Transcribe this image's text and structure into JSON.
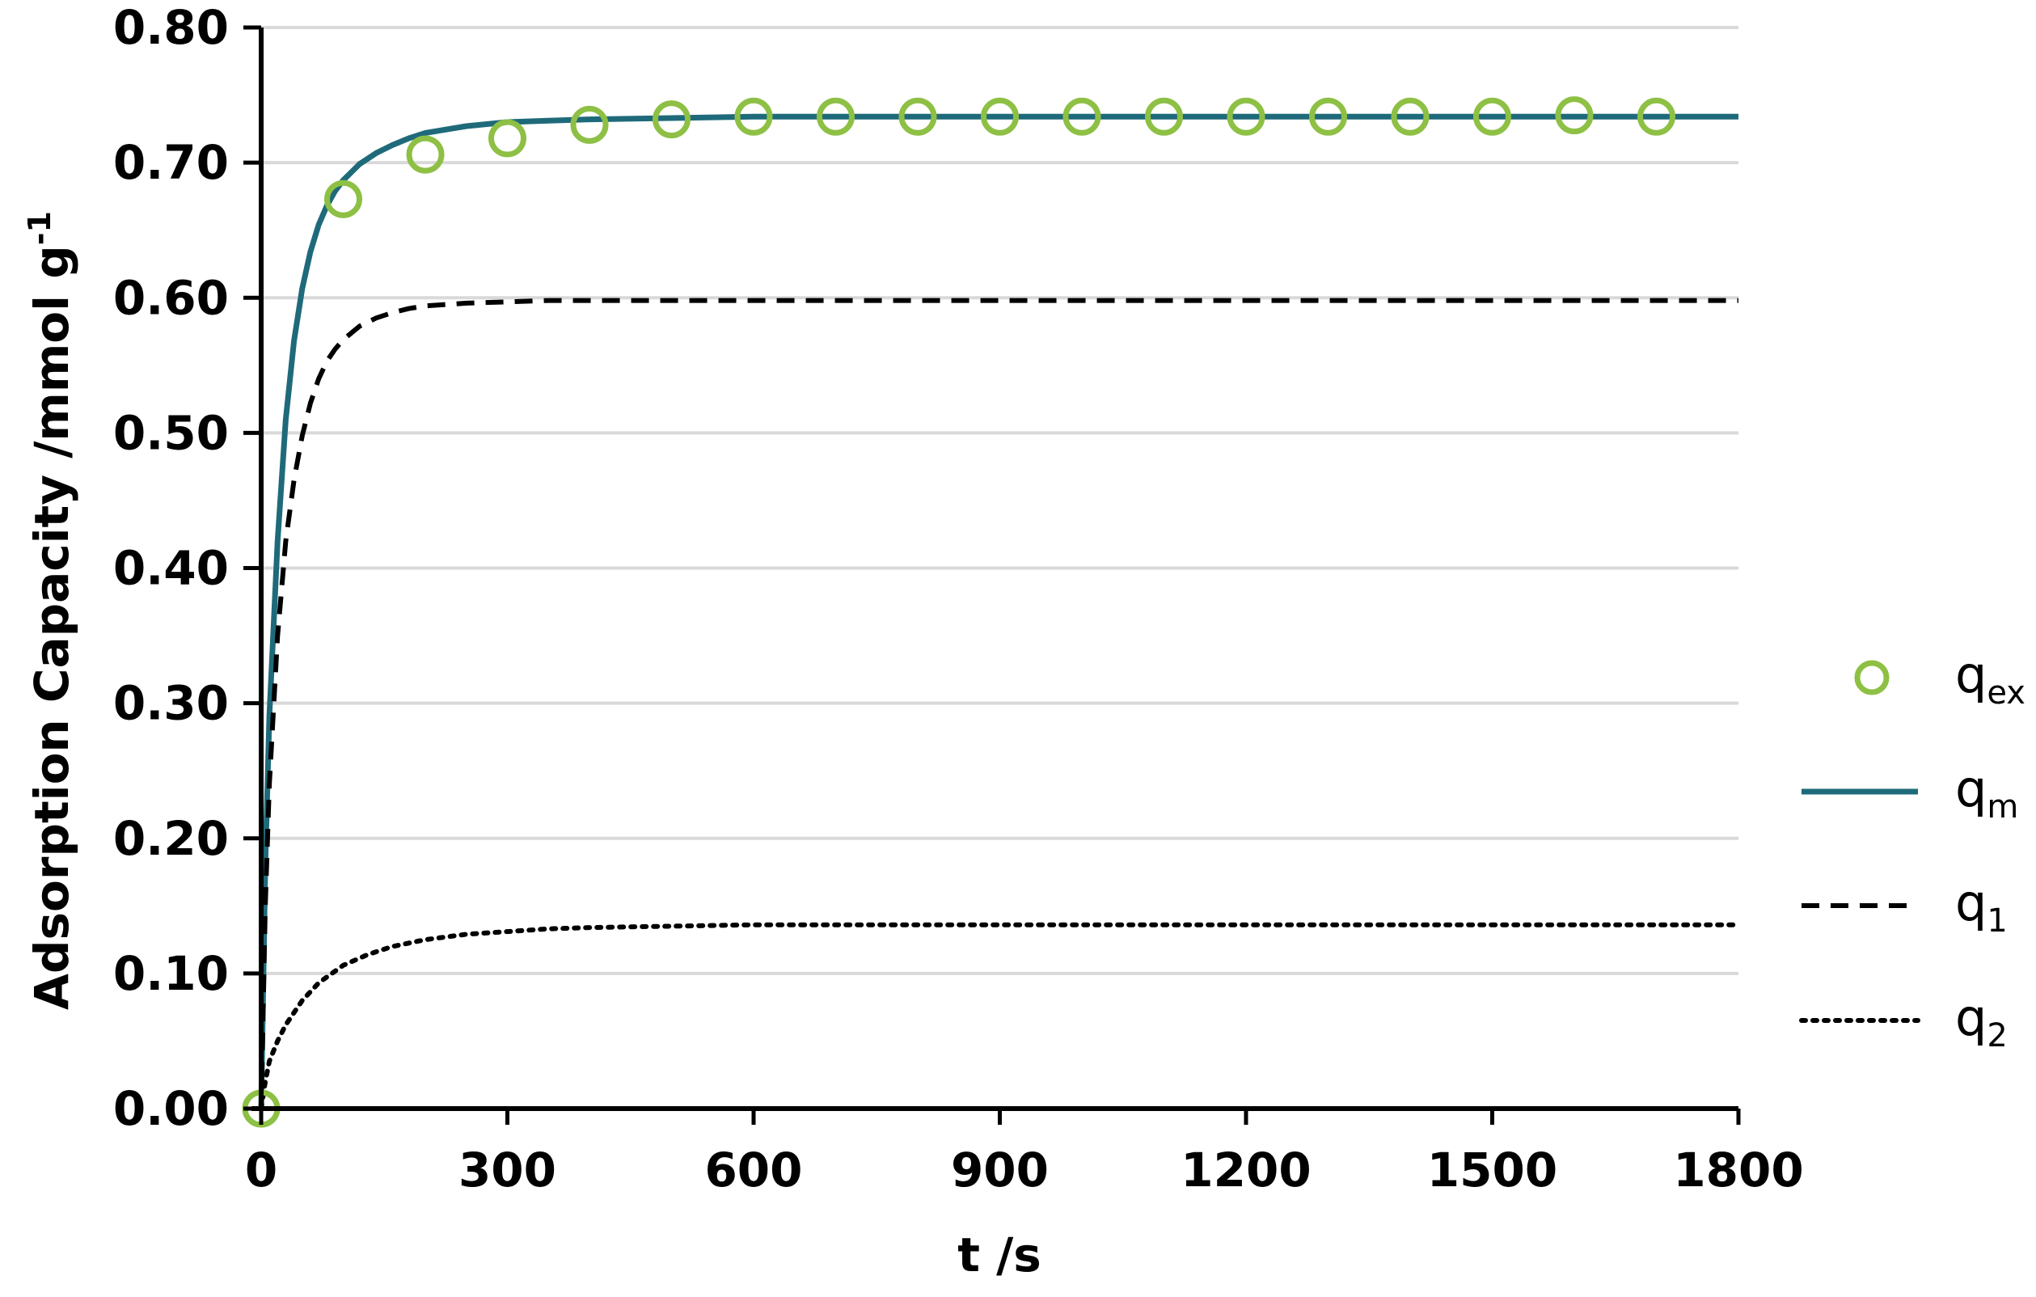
{
  "chart_data": {
    "type": "line",
    "title": "",
    "xlabel": "t /s",
    "ylabel": "Adsorption Capacity /mmol g",
    "ylabel_sup": "-1",
    "xlim": [
      0,
      1800
    ],
    "ylim": [
      0,
      0.8
    ],
    "x_ticks": [
      0,
      300,
      600,
      900,
      1200,
      1500,
      1800
    ],
    "x_tick_labels": [
      "0",
      "300",
      "600",
      "900",
      "1200",
      "1500",
      "1800"
    ],
    "y_ticks": [
      0,
      0.1,
      0.2,
      0.3,
      0.4,
      0.5,
      0.6,
      0.7,
      0.8
    ],
    "y_tick_labels": [
      "0.00",
      "0.10",
      "0.20",
      "0.30",
      "0.40",
      "0.50",
      "0.60",
      "0.70",
      "0.80"
    ],
    "grid": "horizontal",
    "legend_position": "right",
    "series": [
      {
        "name": "q_ex",
        "legend_main": "q",
        "legend_sub": "ex",
        "style": "markers",
        "color": "#8dc044",
        "x": [
          0,
          100,
          200,
          300,
          400,
          500,
          600,
          700,
          800,
          900,
          1000,
          1100,
          1200,
          1300,
          1400,
          1500,
          1600,
          1700
        ],
        "values": [
          0.0,
          0.673,
          0.706,
          0.718,
          0.728,
          0.732,
          0.734,
          0.734,
          0.734,
          0.734,
          0.734,
          0.734,
          0.734,
          0.734,
          0.734,
          0.734,
          0.735,
          0.734
        ]
      },
      {
        "name": "q_m",
        "legend_main": "q",
        "legend_sub": "m",
        "style": "solid",
        "color": "#1f6a7a",
        "x": [
          0,
          5,
          10,
          20,
          30,
          40,
          50,
          60,
          70,
          80,
          90,
          100,
          120,
          140,
          160,
          180,
          200,
          250,
          300,
          350,
          400,
          500,
          600,
          800,
          1000,
          1200,
          1400,
          1600,
          1800
        ],
        "values": [
          0.0,
          0.18,
          0.29,
          0.42,
          0.51,
          0.568,
          0.607,
          0.634,
          0.654,
          0.668,
          0.679,
          0.687,
          0.699,
          0.707,
          0.713,
          0.718,
          0.722,
          0.727,
          0.73,
          0.731,
          0.732,
          0.733,
          0.734,
          0.734,
          0.734,
          0.734,
          0.734,
          0.734,
          0.734
        ]
      },
      {
        "name": "q_1",
        "legend_main": "q",
        "legend_sub": "1",
        "style": "dashed",
        "color": "#000000",
        "x": [
          0,
          5,
          10,
          20,
          30,
          40,
          50,
          60,
          70,
          80,
          90,
          100,
          120,
          140,
          160,
          180,
          200,
          250,
          300,
          350,
          400,
          500,
          600,
          800,
          1000,
          1200,
          1400,
          1600,
          1800
        ],
        "values": [
          0.0,
          0.15,
          0.24,
          0.35,
          0.42,
          0.465,
          0.498,
          0.522,
          0.54,
          0.553,
          0.562,
          0.569,
          0.579,
          0.585,
          0.589,
          0.592,
          0.594,
          0.596,
          0.597,
          0.598,
          0.598,
          0.598,
          0.598,
          0.598,
          0.598,
          0.598,
          0.598,
          0.598,
          0.598
        ]
      },
      {
        "name": "q_2",
        "legend_main": "q",
        "legend_sub": "2",
        "style": "dotted",
        "color": "#000000",
        "x": [
          0,
          5,
          10,
          20,
          30,
          50,
          70,
          100,
          130,
          160,
          200,
          250,
          300,
          350,
          400,
          500,
          600,
          800,
          1000,
          1200,
          1400,
          1600,
          1800
        ],
        "values": [
          0.0,
          0.02,
          0.035,
          0.05,
          0.062,
          0.08,
          0.093,
          0.106,
          0.114,
          0.12,
          0.125,
          0.129,
          0.131,
          0.133,
          0.134,
          0.135,
          0.136,
          0.136,
          0.136,
          0.136,
          0.136,
          0.136,
          0.136
        ]
      }
    ]
  }
}
